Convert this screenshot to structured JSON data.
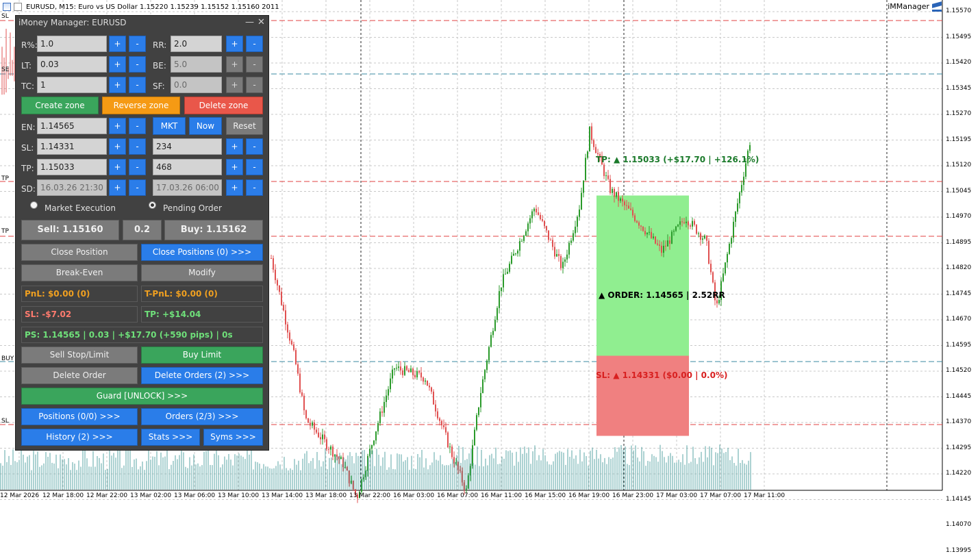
{
  "window": {
    "symbol_header": "EURUSD, M15:  Euro vs US Dollar  1.15220 1.15239 1.15152 1.15160  2011",
    "indicator_name": "iMManager"
  },
  "left_levels": {
    "sl_top": "SL",
    "se": "SE",
    "tp": "TP",
    "tp2": "TP",
    "buy": "BUY",
    "sl_bottom": "SL"
  },
  "price_axis": [
    "1.15570",
    "1.15495",
    "1.15420",
    "1.15345",
    "1.15270",
    "1.15195",
    "1.15120",
    "1.15045",
    "1.14970",
    "1.14895",
    "1.14820",
    "1.14745",
    "1.14670",
    "1.14595",
    "1.14520",
    "1.14445",
    "1.14370",
    "1.14295",
    "1.14220",
    "1.14145",
    "1.14070",
    "1.13995"
  ],
  "time_axis": [
    "12 Mar 2026",
    "12 Mar 18:00",
    "12 Mar 22:00",
    "13 Mar 02:00",
    "13 Mar 06:00",
    "13 Mar 10:00",
    "13 Mar 14:00",
    "13 Mar 18:00",
    "13 Mar 22:00",
    "16 Mar 03:00",
    "16 Mar 07:00",
    "16 Mar 11:00",
    "16 Mar 15:00",
    "16 Mar 19:00",
    "16 Mar 23:00",
    "17 Mar 03:00",
    "17 Mar 07:00",
    "17 Mar 11:00"
  ],
  "trade_overlay": {
    "tp_text": "TP: ▲ 1.15033 (+$17.70 | +126.1%)",
    "order_text": "▲ ORDER: 1.14565 | 2.52RR",
    "sl_text": "SL: ▲ 1.14331 ($0.00 | 0.0%)"
  },
  "panel": {
    "title": "iMoney Manager: EURUSD",
    "minimize": "—",
    "close": "✕",
    "plus": "+",
    "minus": "-",
    "rows": {
      "r_label": "R%:",
      "r_value": "1.0",
      "rr_label": "RR:",
      "rr_value": "2.0",
      "lt_label": "LT:",
      "lt_value": "0.03",
      "be_label": "BE:",
      "be_value": "5.0",
      "tc_label": "TC:",
      "tc_value": "1",
      "sf_label": "SF:",
      "sf_value": "0.0",
      "en_label": "EN:",
      "en_value": "1.14565",
      "sl_label": "SL:",
      "sl_value": "1.14331",
      "sl_points": "234",
      "tp_label": "TP:",
      "tp_value": "1.15033",
      "tp_points": "468",
      "sd_label": "SD:",
      "sd_value": "16.03.26 21:30",
      "sd_end": "17.03.26 06:00"
    },
    "zone_buttons": {
      "create": "Create zone",
      "reverse": "Reverse zone",
      "delete": "Delete zone"
    },
    "entry_buttons": {
      "mkt": "MKT",
      "now": "Now",
      "reset": "Reset"
    },
    "execution": {
      "market": "Market Execution",
      "pending": "Pending Order",
      "selected": "pending"
    },
    "quote": {
      "sell": "Sell: 1.15160",
      "spread": "0.2",
      "buy": "Buy: 1.15162"
    },
    "actions": {
      "close_position": "Close Position",
      "close_positions": "Close Positions (0) >>>",
      "break_even": "Break-Even",
      "modify": "Modify",
      "sell_stop_limit": "Sell Stop/Limit",
      "buy_limit": "Buy Limit",
      "delete_order": "Delete Order",
      "delete_orders": "Delete Orders (2) >>>",
      "guard": "Guard [UNLOCK] >>>",
      "positions": "Positions (0/0) >>>",
      "orders": "Orders (2/3) >>>",
      "history": "History (2) >>>",
      "stats": "Stats >>>",
      "syms": "Syms >>>"
    },
    "info": {
      "pnl": "PnL: $0.00 (0)",
      "tpnl": "T-PnL: $0.00 (0)",
      "sl": "SL: -$7.02",
      "tp": "TP: +$14.04",
      "ps": "PS: 1.14565 | 0.03 | +$17.70 (+590 pips) | 0s"
    },
    "colors": {
      "blue": "#2a7de9",
      "green": "#3aa55c",
      "orange": "#f59a14",
      "red": "#e9574a",
      "info_orange": "#f0a020",
      "info_red": "#ff7b6e",
      "info_green": "#6fe07a"
    }
  }
}
